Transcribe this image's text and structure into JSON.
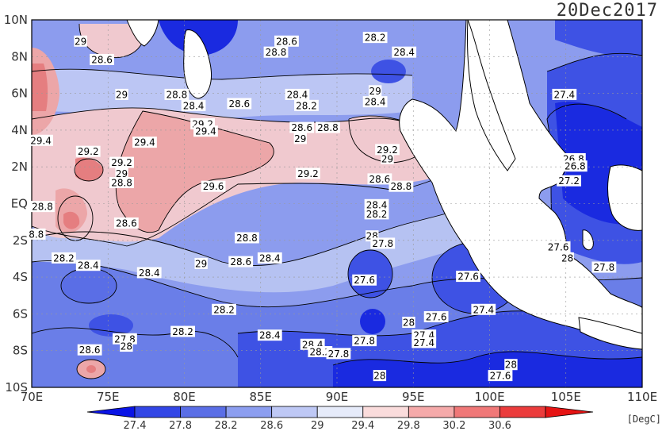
{
  "title": "20Dec2017",
  "units": "[DegC]",
  "lat_labels": [
    "10N",
    "8N",
    "6N",
    "4N",
    "2N",
    "EQ",
    "2S",
    "4S",
    "6S",
    "8S",
    "10S"
  ],
  "lon_labels": [
    "70E",
    "75E",
    "80E",
    "85E",
    "90E",
    "95E",
    "100E",
    "105E",
    "110E"
  ],
  "colorbar": {
    "tick_labels": [
      "27.4",
      "27.8",
      "28.2",
      "28.6",
      "29",
      "29.4",
      "29.8",
      "30.2",
      "30.6"
    ],
    "colors": [
      "#0a14e6",
      "#3246e6",
      "#5a6ee6",
      "#8c9ef0",
      "#bec8f5",
      "#e6ebfa",
      "#fadcdc",
      "#f5aaaa",
      "#f07878",
      "#eb3c3c",
      "#e61414"
    ]
  },
  "colors": {
    "land": "#ffffff",
    "coast": "#000000",
    "grid": "#888888",
    "cold_deep": "#1020e0",
    "cold": "#4658e8",
    "cool": "#8696ee",
    "neutral": "#c8d0f4",
    "warm": "#f0c8c8",
    "hot": "#ec8c8c"
  },
  "contour_labels": [
    {
      "text": "29",
      "lon": 73.2,
      "lat": 8.8
    },
    {
      "text": "28.6",
      "lon": 74.6,
      "lat": 7.8
    },
    {
      "text": "28.6",
      "lon": 86.7,
      "lat": 8.8
    },
    {
      "text": "28.8",
      "lon": 86.0,
      "lat": 8.2
    },
    {
      "text": "28.2",
      "lon": 92.5,
      "lat": 9.0
    },
    {
      "text": "28.4",
      "lon": 94.4,
      "lat": 8.2
    },
    {
      "text": "29",
      "lon": 75.9,
      "lat": 5.9
    },
    {
      "text": "28.8",
      "lon": 79.5,
      "lat": 5.9
    },
    {
      "text": "28.4",
      "lon": 80.6,
      "lat": 5.3
    },
    {
      "text": "28.6",
      "lon": 83.6,
      "lat": 5.4
    },
    {
      "text": "28.4",
      "lon": 87.4,
      "lat": 5.9
    },
    {
      "text": "28.2",
      "lon": 88.0,
      "lat": 5.3
    },
    {
      "text": "29",
      "lon": 92.5,
      "lat": 6.1
    },
    {
      "text": "28.4",
      "lon": 92.5,
      "lat": 5.5
    },
    {
      "text": "29.2",
      "lon": 81.2,
      "lat": 4.3
    },
    {
      "text": "29.4",
      "lon": 81.4,
      "lat": 3.9
    },
    {
      "text": "28.6",
      "lon": 87.7,
      "lat": 4.1
    },
    {
      "text": "28.8",
      "lon": 89.4,
      "lat": 4.1
    },
    {
      "text": "29",
      "lon": 87.6,
      "lat": 3.5
    },
    {
      "text": "29.4",
      "lon": 70.6,
      "lat": 3.4
    },
    {
      "text": "29.4",
      "lon": 77.4,
      "lat": 3.3
    },
    {
      "text": "29.2",
      "lon": 73.7,
      "lat": 2.8
    },
    {
      "text": "29.2",
      "lon": 93.3,
      "lat": 2.9
    },
    {
      "text": "29",
      "lon": 93.3,
      "lat": 2.4
    },
    {
      "text": "29.2",
      "lon": 75.9,
      "lat": 2.2
    },
    {
      "text": "29",
      "lon": 75.9,
      "lat": 1.6
    },
    {
      "text": "28.8",
      "lon": 75.9,
      "lat": 1.1
    },
    {
      "text": "29.6",
      "lon": 81.9,
      "lat": 0.9
    },
    {
      "text": "29.2",
      "lon": 88.1,
      "lat": 1.6
    },
    {
      "text": "28.6",
      "lon": 92.8,
      "lat": 1.3
    },
    {
      "text": "28.8",
      "lon": 94.2,
      "lat": 0.9
    },
    {
      "text": "28.8",
      "lon": 70.7,
      "lat": -0.2
    },
    {
      "text": "28.4",
      "lon": 92.6,
      "lat": -0.1
    },
    {
      "text": "28.2",
      "lon": 92.6,
      "lat": -0.6
    },
    {
      "text": "28.6",
      "lon": 76.2,
      "lat": -1.1
    },
    {
      "text": "8.8",
      "lon": 70.3,
      "lat": -1.7
    },
    {
      "text": "28",
      "lon": 92.3,
      "lat": -1.8
    },
    {
      "text": "27.8",
      "lon": 93.0,
      "lat": -2.2
    },
    {
      "text": "28.8",
      "lon": 84.1,
      "lat": -1.9
    },
    {
      "text": "28.2",
      "lon": 72.1,
      "lat": -3.0
    },
    {
      "text": "28.4",
      "lon": 73.7,
      "lat": -3.4
    },
    {
      "text": "29",
      "lon": 81.1,
      "lat": -3.3
    },
    {
      "text": "28.6",
      "lon": 83.7,
      "lat": -3.2
    },
    {
      "text": "28.4",
      "lon": 85.6,
      "lat": -3.0
    },
    {
      "text": "28.4",
      "lon": 77.7,
      "lat": -3.8
    },
    {
      "text": "27.6",
      "lon": 104.5,
      "lat": -2.4
    },
    {
      "text": "28",
      "lon": 105.1,
      "lat": -3.0
    },
    {
      "text": "27.8",
      "lon": 107.5,
      "lat": -3.5
    },
    {
      "text": "27.6",
      "lon": 91.8,
      "lat": -4.2
    },
    {
      "text": "27.6",
      "lon": 98.6,
      "lat": -4.0
    },
    {
      "text": "28.2",
      "lon": 82.6,
      "lat": -5.8
    },
    {
      "text": "27.4",
      "lon": 99.6,
      "lat": -5.8
    },
    {
      "text": "27.6",
      "lon": 96.5,
      "lat": -6.2
    },
    {
      "text": "28",
      "lon": 94.7,
      "lat": -6.5
    },
    {
      "text": "27.8",
      "lon": 76.1,
      "lat": -7.4
    },
    {
      "text": "28.2",
      "lon": 79.9,
      "lat": -7.0
    },
    {
      "text": "28",
      "lon": 76.2,
      "lat": -7.8
    },
    {
      "text": "28.4",
      "lon": 85.6,
      "lat": -7.2
    },
    {
      "text": "27.8",
      "lon": 91.8,
      "lat": -7.5
    },
    {
      "text": "28.4",
      "lon": 88.4,
      "lat": -7.7
    },
    {
      "text": "27.4",
      "lon": 95.7,
      "lat": -7.2
    },
    {
      "text": "27.4",
      "lon": 95.7,
      "lat": -7.6
    },
    {
      "text": "28.2",
      "lon": 88.9,
      "lat": -8.1
    },
    {
      "text": "27.8",
      "lon": 90.1,
      "lat": -8.2
    },
    {
      "text": "28.6",
      "lon": 73.8,
      "lat": -8.0
    },
    {
      "text": "28",
      "lon": 92.8,
      "lat": -9.4
    },
    {
      "text": "27.6",
      "lon": 100.7,
      "lat": -9.4
    },
    {
      "text": "28",
      "lon": 101.4,
      "lat": -8.8
    },
    {
      "text": "27.4",
      "lon": 104.9,
      "lat": 5.9
    },
    {
      "text": "26.8",
      "lon": 105.5,
      "lat": 2.4
    },
    {
      "text": "26.8",
      "lon": 105.6,
      "lat": 2.0
    },
    {
      "text": "27.2",
      "lon": 105.2,
      "lat": 1.2
    }
  ]
}
